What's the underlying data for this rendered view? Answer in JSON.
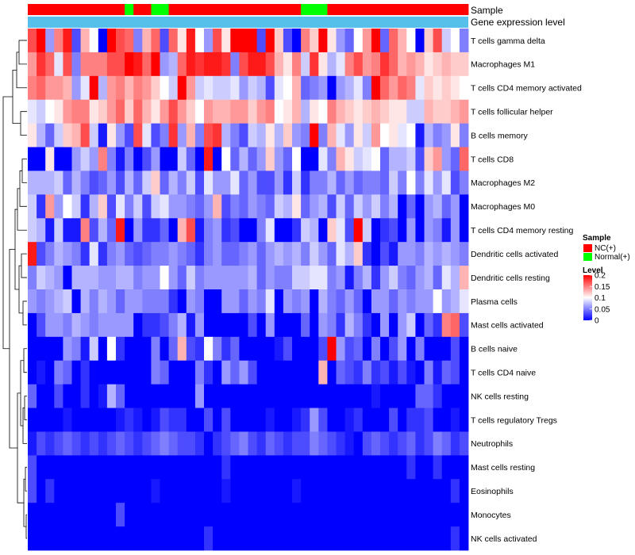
{
  "chart_data": {
    "type": "heatmap",
    "title": "",
    "annotation_rows": [
      "Sample",
      "Gene expression level"
    ],
    "sample_groups": [
      "NC",
      "NC",
      "NC",
      "NC",
      "NC",
      "NC",
      "NC",
      "NC",
      "NC",
      "NC",
      "NC",
      "Normal",
      "NC",
      "NC",
      "Normal",
      "Normal",
      "NC",
      "NC",
      "NC",
      "NC",
      "NC",
      "NC",
      "NC",
      "NC",
      "NC",
      "NC",
      "NC",
      "NC",
      "NC",
      "NC",
      "NC",
      "Normal",
      "Normal",
      "Normal",
      "NC",
      "NC",
      "NC",
      "NC",
      "NC",
      "NC",
      "NC",
      "NC",
      "NC",
      "NC",
      "NC",
      "NC",
      "NC",
      "NC",
      "NC",
      "NC"
    ],
    "rows": [
      "T cells gamma delta",
      "Macrophages M1",
      "T cells CD4 memory activated",
      "T cells follicular helper",
      "B cells memory",
      "T cells CD8",
      "Macrophages M2",
      "Macrophages M0",
      "T cells CD4 memory resting",
      "Dendritic cells activated",
      "Dendritic cells resting",
      "Plasma cells",
      "Mast cells activated",
      "B cells naive",
      "T cells CD4 naive",
      "NK cells resting",
      "T cells regulatory  Tregs",
      "Neutrophils",
      "Mast cells resting",
      "Eosinophils",
      "Monocytes",
      "NK cells activated"
    ],
    "values": [
      [
        0.17,
        0.2,
        0.06,
        0.15,
        0.19,
        0.03,
        0.13,
        0.1,
        0.0,
        0.2,
        0.17,
        0.16,
        0.05,
        0.13,
        0.16,
        0.03,
        0.16,
        0.11,
        0.19,
        0.1,
        0.06,
        0.17,
        0.11,
        0.2,
        0.2,
        0.2,
        0.03,
        0.2,
        0.12,
        0.03,
        0.0,
        0.15,
        0.12,
        0.2,
        0.11,
        0.06,
        0.04,
        0.1,
        0.14,
        0.2,
        0.04,
        0.16,
        0.13,
        0.1,
        0.0,
        0.12,
        0.17,
        0.08,
        0.1,
        0.05
      ],
      [
        0.14,
        0.18,
        0.16,
        0.09,
        0.17,
        0.05,
        0.15,
        0.15,
        0.15,
        0.17,
        0.17,
        0.2,
        0.19,
        0.16,
        0.2,
        0.06,
        0.07,
        0.16,
        0.19,
        0.18,
        0.19,
        0.19,
        0.18,
        0.05,
        0.17,
        0.19,
        0.19,
        0.17,
        0.13,
        0.11,
        0.15,
        0.08,
        0.18,
        0.11,
        0.07,
        0.09,
        0.15,
        0.17,
        0.14,
        0.15,
        0.18,
        0.16,
        0.13,
        0.14,
        0.13,
        0.11,
        0.12,
        0.13,
        0.12,
        0.12
      ],
      [
        0.15,
        0.16,
        0.14,
        0.14,
        0.13,
        0.06,
        0.09,
        0.2,
        0.07,
        0.14,
        0.15,
        0.13,
        0.15,
        0.14,
        0.12,
        0.1,
        0.08,
        0.2,
        0.14,
        0.08,
        0.09,
        0.08,
        0.08,
        0.09,
        0.06,
        0.08,
        0.07,
        0.03,
        0.09,
        0.1,
        0.13,
        0.04,
        0.05,
        0.06,
        0.0,
        0.06,
        0.07,
        0.09,
        0.05,
        0.2,
        0.16,
        0.14,
        0.16,
        0.15,
        0.09,
        0.12,
        0.11,
        0.12,
        0.11,
        0.1
      ],
      [
        0.09,
        0.08,
        0.1,
        0.11,
        0.14,
        0.15,
        0.15,
        0.11,
        0.12,
        0.14,
        0.16,
        0.12,
        0.16,
        0.13,
        0.11,
        0.14,
        0.17,
        0.14,
        0.12,
        0.1,
        0.14,
        0.13,
        0.13,
        0.14,
        0.14,
        0.12,
        0.14,
        0.15,
        0.1,
        0.11,
        0.13,
        0.07,
        0.11,
        0.1,
        0.15,
        0.13,
        0.12,
        0.11,
        0.12,
        0.13,
        0.12,
        0.11,
        0.11,
        0.08,
        0.08,
        0.13,
        0.12,
        0.12,
        0.13,
        0.14
      ],
      [
        0.11,
        0.07,
        0.04,
        0.08,
        0.12,
        0.13,
        0.17,
        0.08,
        0.01,
        0.11,
        0.06,
        0.03,
        0.17,
        0.09,
        0.03,
        0.05,
        0.18,
        0.06,
        0.13,
        0.05,
        0.17,
        0.18,
        0.07,
        0.05,
        0.03,
        0.08,
        0.07,
        0.11,
        0.07,
        0.12,
        0.06,
        0.05,
        0.2,
        0.05,
        0.13,
        0.09,
        0.06,
        0.11,
        0.08,
        0.14,
        0.1,
        0.11,
        0.09,
        0.1,
        0.01,
        0.07,
        0.05,
        0.06,
        0.11,
        0.05
      ],
      [
        0.0,
        0.0,
        0.11,
        0.0,
        0.0,
        0.06,
        0.08,
        0.06,
        0.15,
        0.05,
        0.01,
        0.05,
        0.0,
        0.03,
        0.06,
        0.0,
        0.0,
        0.08,
        0.04,
        0.0,
        0.19,
        0.0,
        0.1,
        0.04,
        0.07,
        0.04,
        0.06,
        0.12,
        0.06,
        0.04,
        0.1,
        0.0,
        0.0,
        0.09,
        0.05,
        0.13,
        0.11,
        0.08,
        0.09,
        0.1,
        0.04,
        0.07,
        0.07,
        0.08,
        0.03,
        0.12,
        0.14,
        0.06,
        0.04,
        0.16
      ],
      [
        0.07,
        0.07,
        0.07,
        0.08,
        0.04,
        0.07,
        0.05,
        0.03,
        0.04,
        0.06,
        0.03,
        0.07,
        0.04,
        0.08,
        0.12,
        0.04,
        0.07,
        0.05,
        0.08,
        0.03,
        0.09,
        0.06,
        0.06,
        0.09,
        0.04,
        0.06,
        0.03,
        0.03,
        0.06,
        0.02,
        0.08,
        0.02,
        0.05,
        0.05,
        0.07,
        0.04,
        0.06,
        0.04,
        0.05,
        0.05,
        0.04,
        0.08,
        0.05,
        0.1,
        0.05,
        0.09,
        0.06,
        0.09,
        0.03,
        0.05
      ],
      [
        0.08,
        0.02,
        0.14,
        0.06,
        0.1,
        0.08,
        0.02,
        0.07,
        0.12,
        0.03,
        0.09,
        0.05,
        0.08,
        0.03,
        0.08,
        0.09,
        0.06,
        0.06,
        0.05,
        0.04,
        0.06,
        0.13,
        0.03,
        0.05,
        0.04,
        0.06,
        0.05,
        0.04,
        0.08,
        0.07,
        0.11,
        0.04,
        0.06,
        0.07,
        0.03,
        0.08,
        0.04,
        0.08,
        0.06,
        0.08,
        0.05,
        0.07,
        0.0,
        0.04,
        0.0,
        0.06,
        0.07,
        0.04,
        0.06,
        0.0
      ],
      [
        0.08,
        0.07,
        0.01,
        0.08,
        0.01,
        0.01,
        0.15,
        0.03,
        0.07,
        0.04,
        0.19,
        0.0,
        0.06,
        0.02,
        0.02,
        0.04,
        0.0,
        0.13,
        0.17,
        0.01,
        0.05,
        0.06,
        0.02,
        0.03,
        0.0,
        0.0,
        0.05,
        0.09,
        0.0,
        0.0,
        0.02,
        0.08,
        0.07,
        0.0,
        0.12,
        0.09,
        0.03,
        0.2,
        0.08,
        0.0,
        0.02,
        0.03,
        0.0,
        0.06,
        0.0,
        0.06,
        0.05,
        0.01,
        0.06,
        0.0
      ],
      [
        0.19,
        0.03,
        0.05,
        0.07,
        0.06,
        0.05,
        0.02,
        0.09,
        0.02,
        0.05,
        0.06,
        0.04,
        0.03,
        0.04,
        0.05,
        0.05,
        0.06,
        0.05,
        0.04,
        0.02,
        0.05,
        0.06,
        0.04,
        0.04,
        0.05,
        0.06,
        0.04,
        0.06,
        0.07,
        0.06,
        0.07,
        0.05,
        0.08,
        0.06,
        0.04,
        0.09,
        0.07,
        0.12,
        0.02,
        0.0,
        0.03,
        0.01,
        0.06,
        0.06,
        0.05,
        0.07,
        0.06,
        0.07,
        0.06,
        0.05
      ],
      [
        0.05,
        0.08,
        0.07,
        0.06,
        0.0,
        0.07,
        0.07,
        0.07,
        0.06,
        0.06,
        0.07,
        0.07,
        0.05,
        0.06,
        0.06,
        0.1,
        0.06,
        0.04,
        0.08,
        0.05,
        0.06,
        0.06,
        0.06,
        0.06,
        0.06,
        0.07,
        0.04,
        0.06,
        0.05,
        0.05,
        0.08,
        0.08,
        0.09,
        0.09,
        0.05,
        0.06,
        0.01,
        0.05,
        0.07,
        0.02,
        0.06,
        0.08,
        0.05,
        0.04,
        0.06,
        0.07,
        0.04,
        0.09,
        0.07,
        0.13
      ],
      [
        0.06,
        0.05,
        0.06,
        0.07,
        0.08,
        0.0,
        0.07,
        0.05,
        0.07,
        0.06,
        0.04,
        0.06,
        0.06,
        0.05,
        0.05,
        0.05,
        0.02,
        0.0,
        0.06,
        0.05,
        0.0,
        0.0,
        0.06,
        0.06,
        0.04,
        0.06,
        0.05,
        0.09,
        0.0,
        0.06,
        0.05,
        0.06,
        0.0,
        0.07,
        0.05,
        0.04,
        0.06,
        0.04,
        0.0,
        0.06,
        0.06,
        0.04,
        0.06,
        0.05,
        0.06,
        0.06,
        0.1,
        0.06,
        0.07,
        0.09
      ],
      [
        0.0,
        0.03,
        0.06,
        0.06,
        0.05,
        0.07,
        0.06,
        0.05,
        0.06,
        0.06,
        0.06,
        0.06,
        0.0,
        0.02,
        0.02,
        0.03,
        0.05,
        0.07,
        0.01,
        0.06,
        0.0,
        0.0,
        0.0,
        0.0,
        0.0,
        0.03,
        0.0,
        0.06,
        0.0,
        0.0,
        0.0,
        0.04,
        0.0,
        0.06,
        0.05,
        0.02,
        0.07,
        0.05,
        0.02,
        0.0,
        0.06,
        0.0,
        0.06,
        0.08,
        0.0,
        0.04,
        0.02,
        0.15,
        0.16,
        0.03
      ],
      [
        0.0,
        0.0,
        0.0,
        0.0,
        0.06,
        0.05,
        0.01,
        0.08,
        0.0,
        0.1,
        0.02,
        0.0,
        0.0,
        0.0,
        0.05,
        0.0,
        0.04,
        0.13,
        0.03,
        0.02,
        0.1,
        0.05,
        0.02,
        0.04,
        0.0,
        0.0,
        0.0,
        0.0,
        0.01,
        0.03,
        0.0,
        0.0,
        0.0,
        0.03,
        0.2,
        0.06,
        0.03,
        0.04,
        0.0,
        0.05,
        0.0,
        0.03,
        0.06,
        0.0,
        0.05,
        0.0,
        0.0,
        0.0,
        0.03,
        0.0
      ],
      [
        0.0,
        0.01,
        0.0,
        0.05,
        0.04,
        0.0,
        0.02,
        0.0,
        0.0,
        0.0,
        0.0,
        0.0,
        0.0,
        0.0,
        0.05,
        0.04,
        0.0,
        0.0,
        0.0,
        0.05,
        0.02,
        0.0,
        0.06,
        0.04,
        0.06,
        0.03,
        0.0,
        0.0,
        0.0,
        0.0,
        0.0,
        0.0,
        0.0,
        0.13,
        0.0,
        0.04,
        0.03,
        0.02,
        0.05,
        0.02,
        0.03,
        0.01,
        0.03,
        0.01,
        0.0,
        0.05,
        0.01,
        0.04,
        0.03,
        0.0
      ],
      [
        0.04,
        0.0,
        0.0,
        0.03,
        0.0,
        0.0,
        0.02,
        0.0,
        0.01,
        0.07,
        0.04,
        0.0,
        0.0,
        0.0,
        0.0,
        0.0,
        0.0,
        0.0,
        0.0,
        0.06,
        0.0,
        0.0,
        0.0,
        0.0,
        0.0,
        0.0,
        0.0,
        0.0,
        0.0,
        0.0,
        0.0,
        0.0,
        0.0,
        0.0,
        0.0,
        0.0,
        0.0,
        0.0,
        0.0,
        0.01,
        0.0,
        0.0,
        0.0,
        0.0,
        0.04,
        0.04,
        0.02,
        0.0,
        0.0,
        0.0
      ],
      [
        0.0,
        0.0,
        0.0,
        0.0,
        0.01,
        0.0,
        0.0,
        0.0,
        0.0,
        0.0,
        0.01,
        0.02,
        0.01,
        0.0,
        0.01,
        0.03,
        0.02,
        0.02,
        0.0,
        0.0,
        0.03,
        0.0,
        0.03,
        0.0,
        0.0,
        0.0,
        0.0,
        0.01,
        0.0,
        0.0,
        0.01,
        0.02,
        0.06,
        0.03,
        0.0,
        0.0,
        0.01,
        0.02,
        0.0,
        0.0,
        0.0,
        0.03,
        0.0,
        0.02,
        0.02,
        0.03,
        0.0,
        0.0,
        0.01,
        0.0
      ],
      [
        0.01,
        0.03,
        0.02,
        0.03,
        0.04,
        0.03,
        0.02,
        0.03,
        0.02,
        0.03,
        0.04,
        0.03,
        0.02,
        0.03,
        0.04,
        0.05,
        0.04,
        0.03,
        0.03,
        0.02,
        0.0,
        0.02,
        0.03,
        0.04,
        0.05,
        0.03,
        0.02,
        0.04,
        0.03,
        0.02,
        0.03,
        0.03,
        0.05,
        0.04,
        0.03,
        0.02,
        0.01,
        0.0,
        0.03,
        0.04,
        0.03,
        0.02,
        0.03,
        0.04,
        0.02,
        0.03,
        0.05,
        0.04,
        0.02,
        0.03
      ],
      [
        0.03,
        0.0,
        0.0,
        0.0,
        0.0,
        0.0,
        0.0,
        0.0,
        0.0,
        0.0,
        0.0,
        0.0,
        0.0,
        0.0,
        0.0,
        0.0,
        0.0,
        0.0,
        0.0,
        0.0,
        0.0,
        0.0,
        0.02,
        0.0,
        0.0,
        0.0,
        0.0,
        0.0,
        0.0,
        0.0,
        0.0,
        0.0,
        0.0,
        0.0,
        0.0,
        0.0,
        0.0,
        0.0,
        0.0,
        0.0,
        0.0,
        0.0,
        0.0,
        0.02,
        0.0,
        0.0,
        0.02,
        0.0,
        0.0,
        0.0
      ],
      [
        0.03,
        0.0,
        0.02,
        0.0,
        0.0,
        0.0,
        0.0,
        0.0,
        0.0,
        0.0,
        0.0,
        0.0,
        0.0,
        0.0,
        0.01,
        0.0,
        0.0,
        0.0,
        0.0,
        0.0,
        0.0,
        0.0,
        0.01,
        0.0,
        0.0,
        0.0,
        0.0,
        0.0,
        0.0,
        0.0,
        0.01,
        0.0,
        0.0,
        0.0,
        0.0,
        0.0,
        0.0,
        0.0,
        0.0,
        0.0,
        0.0,
        0.0,
        0.0,
        0.0,
        0.0,
        0.0,
        0.0,
        0.0,
        0.02,
        0.0
      ],
      [
        0.0,
        0.0,
        0.0,
        0.0,
        0.0,
        0.0,
        0.0,
        0.0,
        0.0,
        0.0,
        0.03,
        0.0,
        0.0,
        0.0,
        0.0,
        0.0,
        0.0,
        0.0,
        0.0,
        0.0,
        0.0,
        0.0,
        0.0,
        0.0,
        0.0,
        0.0,
        0.0,
        0.0,
        0.0,
        0.0,
        0.0,
        0.0,
        0.0,
        0.0,
        0.0,
        0.0,
        0.0,
        0.0,
        0.0,
        0.0,
        0.0,
        0.0,
        0.0,
        0.0,
        0.0,
        0.0,
        0.0,
        0.0,
        0.0,
        0.0
      ],
      [
        0.0,
        0.0,
        0.0,
        0.0,
        0.0,
        0.0,
        0.0,
        0.0,
        0.0,
        0.0,
        0.0,
        0.0,
        0.0,
        0.0,
        0.0,
        0.0,
        0.0,
        0.0,
        0.0,
        0.0,
        0.02,
        0.0,
        0.0,
        0.0,
        0.0,
        0.0,
        0.0,
        0.0,
        0.0,
        0.0,
        0.0,
        0.0,
        0.0,
        0.0,
        0.0,
        0.0,
        0.0,
        0.0,
        0.0,
        0.0,
        0.0,
        0.0,
        0.0,
        0.0,
        0.0,
        0.0,
        0.0,
        0.0,
        0.02,
        0.0
      ]
    ],
    "color_scale": {
      "min": 0,
      "mid": 0.1,
      "max": 0.2,
      "low_color": "#0000ff",
      "mid_color": "#ffffff",
      "high_color": "#ff0000"
    },
    "legend": {
      "sample_title": "Sample",
      "sample_items": [
        {
          "group": "NC",
          "label": "NC(+)",
          "color": "#ff0000"
        },
        {
          "group": "Normal",
          "label": "Normal(+)",
          "color": "#00ff00"
        }
      ],
      "level_title": "Level",
      "level_ticks": [
        "0.2",
        "0.15",
        "0.1",
        "0.05",
        "0"
      ],
      "level_tick_values": [
        0.2,
        0.15,
        0.1,
        0.05,
        0
      ]
    },
    "gene_expression_color": "#56bfea",
    "annotation_divider_color": "#eaf6fd"
  }
}
